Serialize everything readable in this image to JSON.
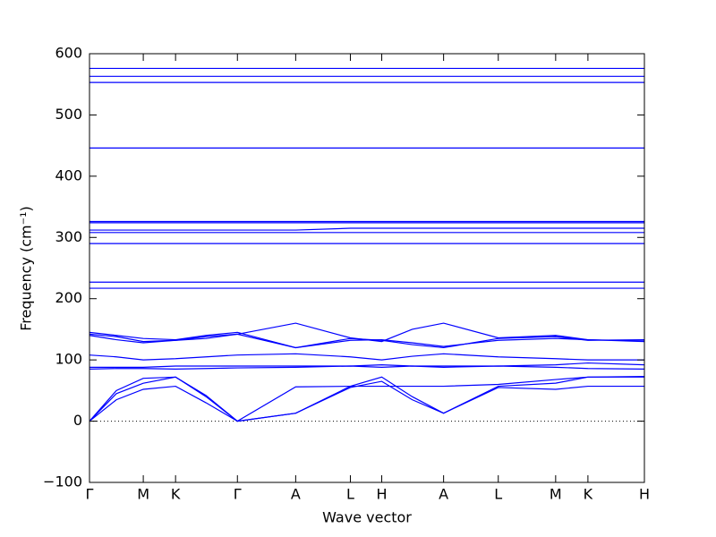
{
  "chart_data": {
    "type": "line",
    "xlabel": "Wave vector",
    "ylabel": "Frequency (cm⁻¹)",
    "color": "#0000ff",
    "zero_line": true,
    "xlim": [
      0,
      619
    ],
    "ylim": [
      -100,
      600
    ],
    "yticks": [
      {
        "value": -100,
        "label": "−100"
      },
      0,
      100,
      200,
      300,
      400,
      500,
      600
    ],
    "xticks": [
      {
        "value": 0,
        "label": "Γ"
      },
      {
        "value": 60,
        "label": "M"
      },
      {
        "value": 96,
        "label": "K"
      },
      {
        "value": 165,
        "label": "Γ"
      },
      {
        "value": 230,
        "label": "A"
      },
      {
        "value": 291,
        "label": "L"
      },
      {
        "value": 326,
        "label": "H"
      },
      {
        "value": 395,
        "label": "A"
      },
      {
        "value": 456,
        "label": "L"
      },
      {
        "value": 520,
        "label": "M"
      },
      {
        "value": 556,
        "label": "K"
      },
      {
        "value": 619,
        "label": "H"
      }
    ],
    "x": [
      0,
      30,
      60,
      96,
      130,
      165,
      230,
      291,
      326,
      360,
      395,
      456,
      520,
      556,
      619
    ],
    "series": [
      {
        "values": [
          0,
          35,
          52,
          57,
          30,
          0,
          13,
          55,
          65,
          35,
          13,
          55,
          52,
          57,
          57
        ]
      },
      {
        "values": [
          0,
          45,
          62,
          72,
          40,
          0,
          13,
          57,
          72,
          40,
          13,
          57,
          62,
          72,
          72
        ]
      },
      {
        "values": [
          0,
          50,
          70,
          72,
          42,
          0,
          56,
          57,
          57,
          57,
          57,
          60,
          68,
          72,
          73
        ]
      },
      {
        "values": [
          85,
          86,
          86,
          85,
          86,
          87,
          88,
          90,
          88,
          90,
          88,
          90,
          88,
          86,
          85
        ]
      },
      {
        "values": [
          88,
          88,
          88,
          90,
          90,
          90,
          90,
          90,
          92,
          90,
          90,
          90,
          92,
          95,
          92
        ]
      },
      {
        "values": [
          108,
          105,
          100,
          102,
          105,
          108,
          110,
          105,
          100,
          106,
          110,
          105,
          102,
          100,
          100
        ]
      },
      {
        "values": [
          142,
          138,
          130,
          132,
          135,
          142,
          120,
          135,
          132,
          125,
          120,
          135,
          138,
          132,
          133
        ]
      },
      {
        "values": [
          140,
          133,
          128,
          132,
          138,
          142,
          160,
          136,
          130,
          150,
          160,
          136,
          140,
          133,
          131
        ]
      },
      {
        "values": [
          145,
          140,
          135,
          133,
          140,
          145,
          120,
          132,
          133,
          128,
          122,
          132,
          135,
          133,
          130
        ]
      },
      {
        "values": [
          217,
          217,
          217,
          217,
          217,
          217,
          217,
          217,
          217,
          217,
          217,
          217,
          217,
          217,
          217
        ]
      },
      {
        "values": [
          227,
          227,
          227,
          227,
          227,
          227,
          227,
          227,
          227,
          227,
          227,
          227,
          227,
          227,
          227
        ]
      },
      {
        "values": [
          290,
          290,
          290,
          290,
          290,
          290,
          290,
          290,
          290,
          290,
          290,
          290,
          290,
          290,
          290
        ]
      },
      {
        "values": [
          308,
          308,
          308,
          308,
          308,
          308,
          308,
          308,
          308,
          308,
          308,
          308,
          308,
          308,
          308
        ]
      },
      {
        "values": [
          312,
          312,
          312,
          312,
          312,
          312,
          312,
          315,
          315,
          315,
          315,
          315,
          315,
          315,
          315
        ]
      },
      {
        "values": [
          324,
          324,
          324,
          324,
          324,
          324,
          324,
          324,
          324,
          324,
          324,
          324,
          324,
          324,
          324
        ]
      },
      {
        "values": [
          326,
          326,
          326,
          326,
          326,
          326,
          326,
          326,
          326,
          326,
          326,
          326,
          326,
          326,
          326
        ]
      },
      {
        "values": [
          446,
          446,
          446,
          446,
          446,
          446,
          446,
          446,
          446,
          446,
          446,
          446,
          446,
          446,
          446
        ]
      },
      {
        "values": [
          553,
          553,
          553,
          553,
          553,
          553,
          553,
          553,
          553,
          553,
          553,
          553,
          553,
          553,
          553
        ]
      },
      {
        "values": [
          563,
          563,
          563,
          563,
          563,
          563,
          563,
          563,
          563,
          563,
          563,
          563,
          563,
          563,
          563
        ]
      },
      {
        "values": [
          576,
          576,
          576,
          576,
          576,
          576,
          576,
          576,
          576,
          576,
          576,
          576,
          576,
          576,
          576
        ]
      }
    ]
  }
}
